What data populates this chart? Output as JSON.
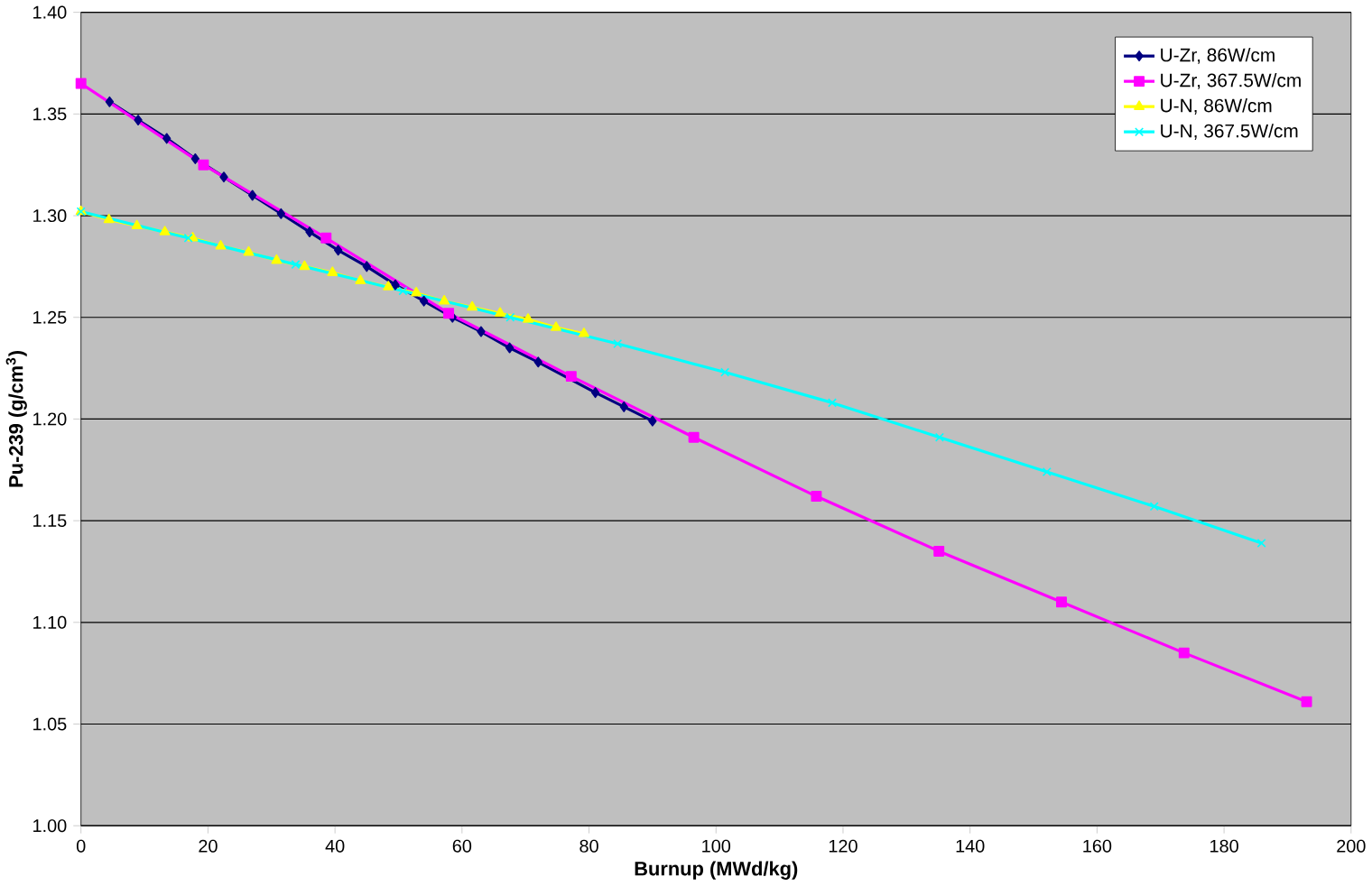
{
  "chart_data": {
    "type": "line",
    "xlabel": "Burnup (MWd/kg)",
    "ylabel": "Pu-239 (g/cm$^{3}$)",
    "xlim": [
      0,
      200
    ],
    "xticks": [
      0,
      20,
      40,
      60,
      80,
      100,
      120,
      140,
      160,
      180,
      200
    ],
    "ylim": [
      1.0,
      1.4
    ],
    "yticks": [
      {
        "value": 1.0,
        "label": "1.00"
      },
      {
        "value": 1.05,
        "label": "1.05"
      },
      {
        "value": 1.1,
        "label": "1.10"
      },
      {
        "value": 1.15,
        "label": "1.15"
      },
      {
        "value": 1.2,
        "label": "1.20"
      },
      {
        "value": 1.25,
        "label": "1.25"
      },
      {
        "value": 1.3,
        "label": "1.30"
      },
      {
        "value": 1.35,
        "label": "1.35"
      },
      {
        "value": 1.4,
        "label": "1.40"
      }
    ],
    "grid": "y",
    "legend": "top right",
    "series": [
      {
        "name": "U-Zr, 86W/cm",
        "color": "#000080",
        "marker": "diamond",
        "x": [
          4.5,
          9,
          13.5,
          18,
          22.5,
          27,
          31.5,
          36,
          40.5,
          45,
          49.5,
          54,
          58.5,
          63,
          67.5,
          72,
          76.5,
          81,
          85.5,
          90
        ],
        "values": [
          1.356,
          1.347,
          1.338,
          1.328,
          1.319,
          1.31,
          1.301,
          1.292,
          1.283,
          1.275,
          1.266,
          1.258,
          1.25,
          1.243,
          1.235,
          1.228,
          null,
          1.213,
          1.206,
          1.199
        ]
      },
      {
        "name": "U-Zr, 367.5W/cm",
        "color": "#ff00ff",
        "marker": "square",
        "x": [
          0,
          19.3,
          38.6,
          57.9,
          77.2,
          96.5,
          115.8,
          135.1,
          154.4,
          173.7,
          193
        ],
        "values": [
          1.365,
          1.325,
          1.289,
          1.252,
          1.221,
          1.191,
          1.162,
          1.135,
          1.11,
          1.085,
          1.061
        ]
      },
      {
        "name": "U-N, 86W/cm",
        "color": "#ffff00",
        "marker": "triangle",
        "x": [
          0,
          4.4,
          8.8,
          13.2,
          17.6,
          22,
          26.4,
          30.8,
          35.2,
          39.6,
          44,
          48.4,
          52.8,
          57.2,
          61.6,
          66,
          70.4,
          74.8,
          79.2
        ],
        "values": [
          1.302,
          1.298,
          1.295,
          1.292,
          1.289,
          1.285,
          1.282,
          1.278,
          1.275,
          1.272,
          1.268,
          1.265,
          1.262,
          1.258,
          1.255,
          1.252,
          1.249,
          1.245,
          1.242
        ]
      },
      {
        "name": "U-N, 367.5W/cm",
        "color": "#00ffff",
        "marker": "cross",
        "x": [
          0,
          16.9,
          33.8,
          50.7,
          67.6,
          84.5,
          101.4,
          118.3,
          135.2,
          152.1,
          169,
          185.9
        ],
        "values": [
          1.302,
          1.289,
          1.276,
          1.263,
          1.25,
          1.237,
          1.223,
          1.208,
          1.191,
          1.174,
          1.157,
          1.139
        ]
      }
    ]
  }
}
